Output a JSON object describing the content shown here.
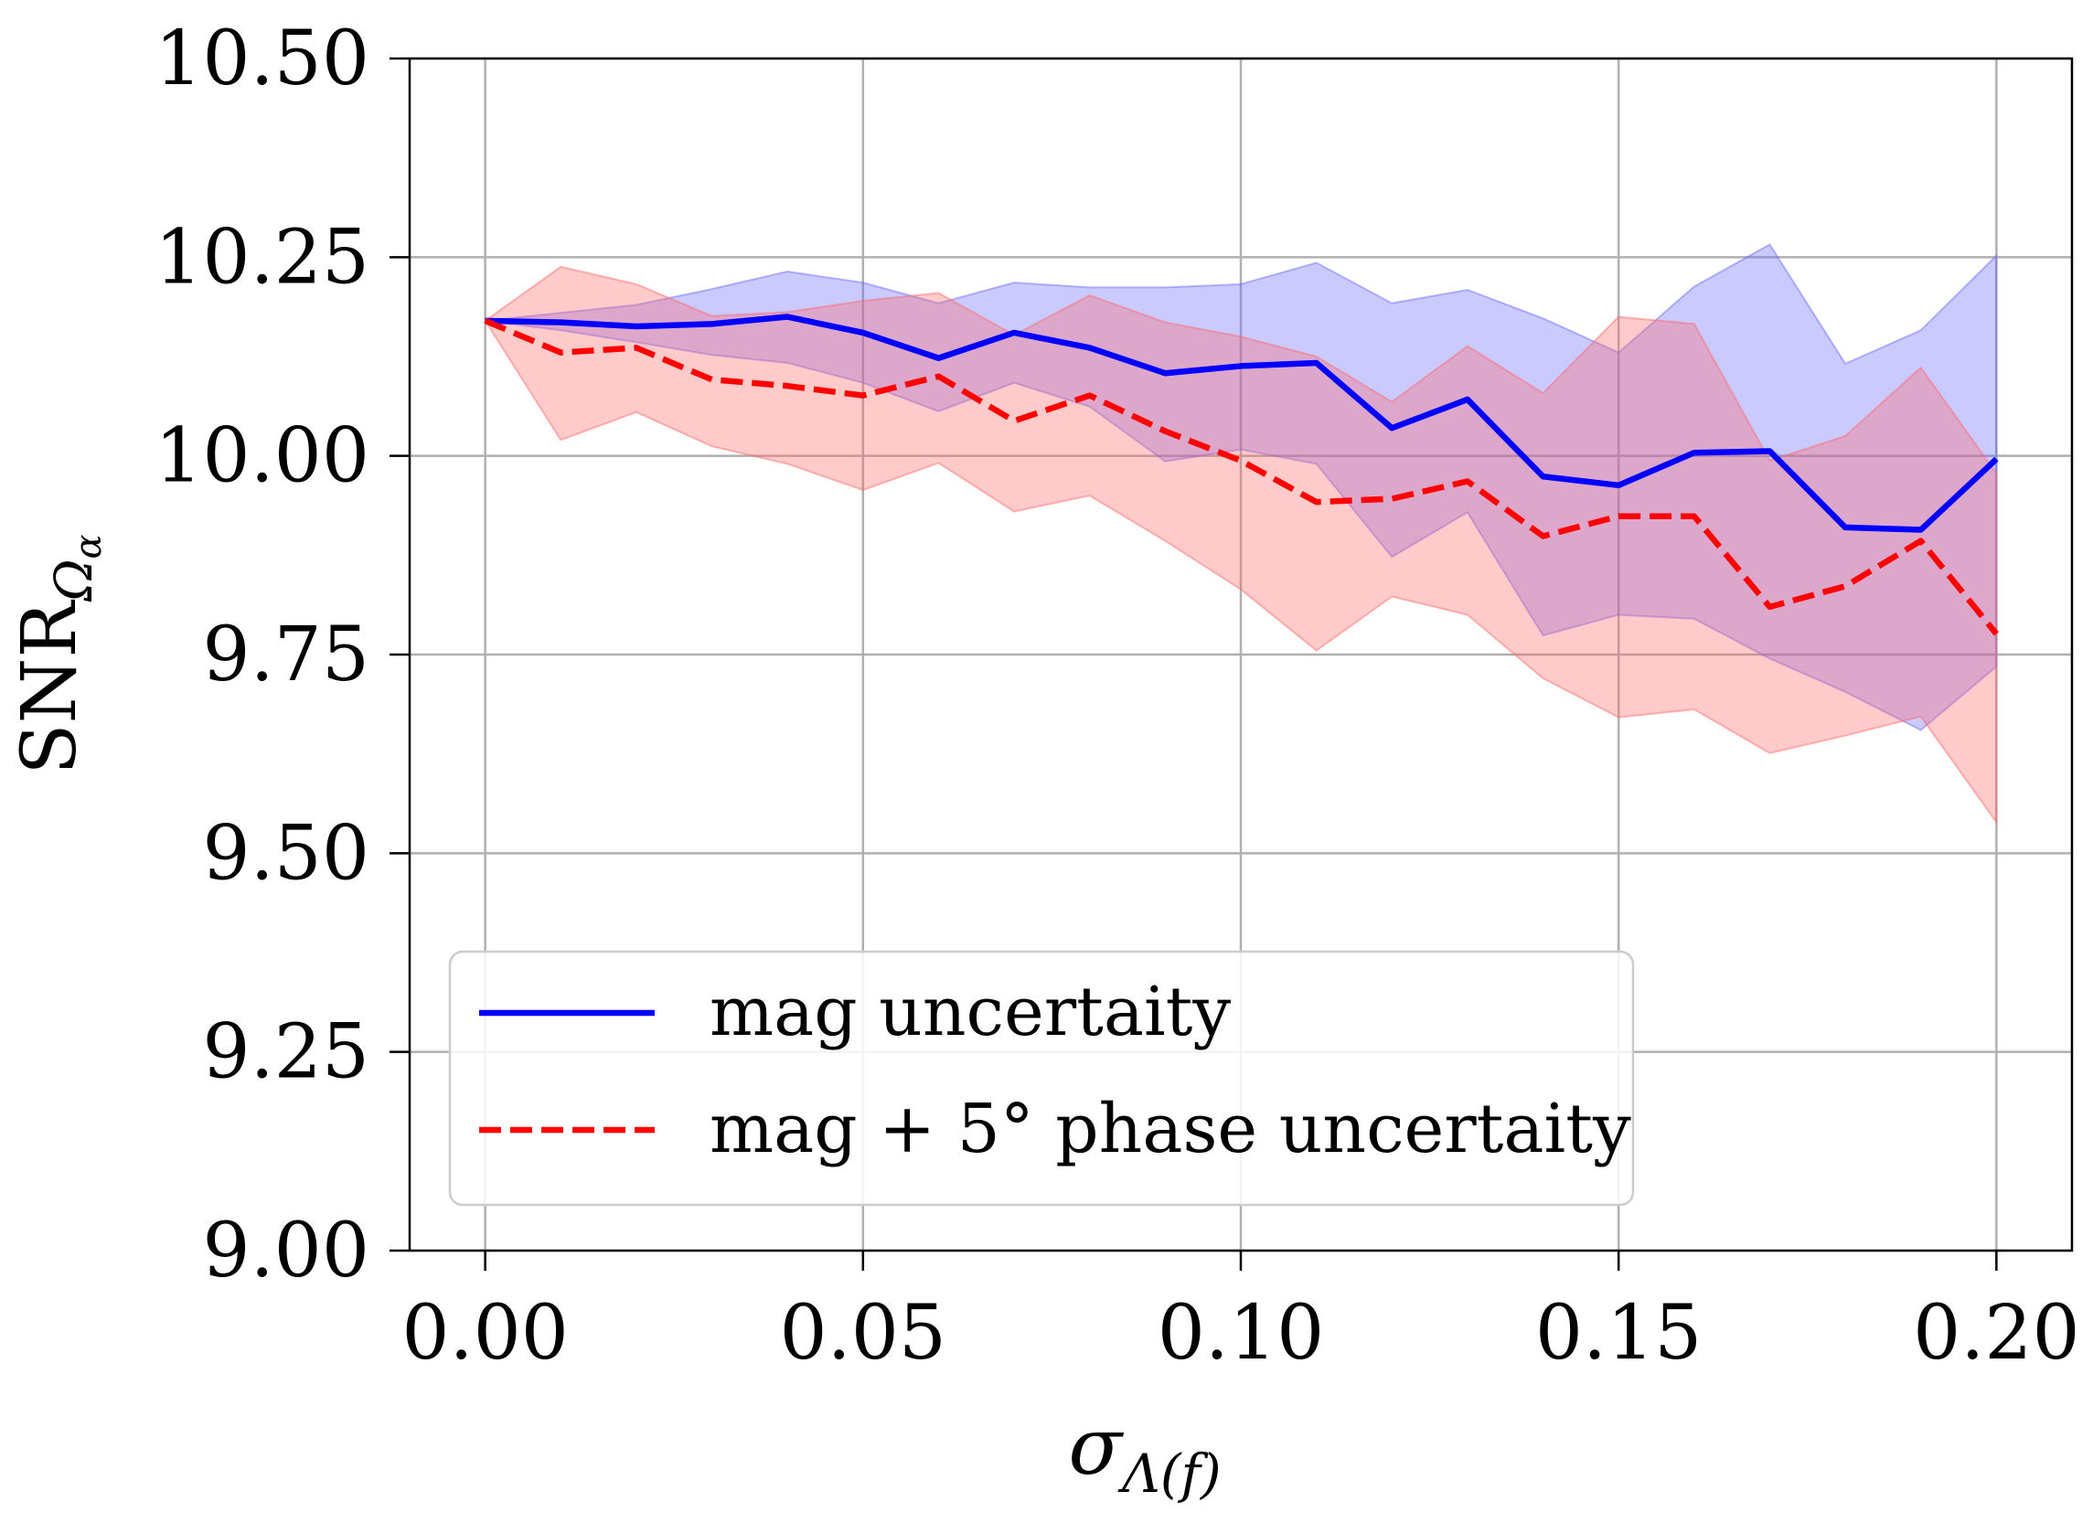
{
  "chart_data": {
    "type": "line",
    "xlabel": {
      "main": "σ",
      "sub": "Λ(f)"
    },
    "ylabel": {
      "main": "SNR",
      "sub": "Ω",
      "subsub": "α"
    },
    "xlim": [
      -0.01,
      0.21
    ],
    "ylim": [
      9.0,
      10.5
    ],
    "xticks": [
      0.0,
      0.05,
      0.1,
      0.15,
      0.2
    ],
    "xtick_labels": [
      "0.00",
      "0.05",
      "0.10",
      "0.15",
      "0.20"
    ],
    "yticks": [
      9.0,
      9.25,
      9.5,
      9.75,
      10.0,
      10.25,
      10.5
    ],
    "ytick_labels": [
      "9.00",
      "9.25",
      "9.50",
      "9.75",
      "10.00",
      "10.25",
      "10.50"
    ],
    "grid": true,
    "legend_position": "lower-left",
    "x": [
      0.0,
      0.01,
      0.02,
      0.03,
      0.04,
      0.05,
      0.06,
      0.07,
      0.08,
      0.09,
      0.1,
      0.11,
      0.12,
      0.13,
      0.14,
      0.15,
      0.16,
      0.17,
      0.18,
      0.19,
      0.2
    ],
    "series": [
      {
        "name": "mag uncertaity",
        "color": "#0000ff",
        "style": "solid",
        "values": [
          10.17,
          10.168,
          10.163,
          10.166,
          10.175,
          10.155,
          10.123,
          10.155,
          10.136,
          10.104,
          10.113,
          10.117,
          10.035,
          10.071,
          9.974,
          9.963,
          10.004,
          10.006,
          9.91,
          9.907,
          9.996
        ],
        "band_upper": [
          10.17,
          10.18,
          10.19,
          10.21,
          10.232,
          10.218,
          10.192,
          10.218,
          10.212,
          10.212,
          10.216,
          10.243,
          10.192,
          10.209,
          10.173,
          10.13,
          10.213,
          10.266,
          10.116,
          10.158,
          10.252
        ],
        "band_lower": [
          10.17,
          10.158,
          10.143,
          10.127,
          10.117,
          10.092,
          10.056,
          10.092,
          10.062,
          9.993,
          10.008,
          9.99,
          9.873,
          9.929,
          9.774,
          9.8,
          9.795,
          9.745,
          9.703,
          9.655,
          9.735
        ],
        "band_color": "#6666ff"
      },
      {
        "name": "mag + 5° phase uncertaity",
        "color": "#ff0000",
        "style": "dashed",
        "values": [
          10.17,
          10.13,
          10.136,
          10.096,
          10.088,
          10.076,
          10.1,
          10.044,
          10.076,
          10.031,
          9.994,
          9.942,
          9.946,
          9.968,
          9.899,
          9.924,
          9.924,
          9.81,
          9.836,
          9.893,
          9.776
        ],
        "band_upper": [
          10.17,
          10.238,
          10.216,
          10.176,
          10.181,
          10.195,
          10.205,
          10.152,
          10.202,
          10.168,
          10.15,
          10.125,
          10.068,
          10.138,
          10.079,
          10.175,
          10.166,
          9.994,
          10.025,
          10.111,
          9.978
        ],
        "band_lower": [
          10.17,
          10.02,
          10.055,
          10.012,
          9.99,
          9.957,
          9.991,
          9.93,
          9.95,
          9.893,
          9.832,
          9.755,
          9.823,
          9.8,
          9.72,
          9.671,
          9.681,
          9.626,
          9.648,
          9.672,
          9.539
        ],
        "band_color": "#ff6666"
      }
    ]
  }
}
